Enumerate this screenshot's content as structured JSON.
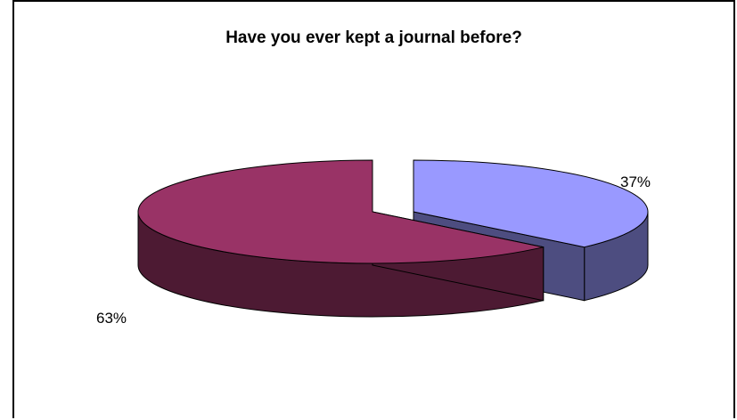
{
  "chart_data": {
    "type": "pie",
    "title": "Have you ever kept a journal before?",
    "slices": [
      {
        "label": "37%",
        "value": 37,
        "color": "#9999ff",
        "side_color": "#4d4d80"
      },
      {
        "label": "63%",
        "value": 63,
        "color": "#993366",
        "side_color": "#4d1a33"
      }
    ],
    "three_d": true,
    "exploded": true,
    "legend": "none"
  }
}
